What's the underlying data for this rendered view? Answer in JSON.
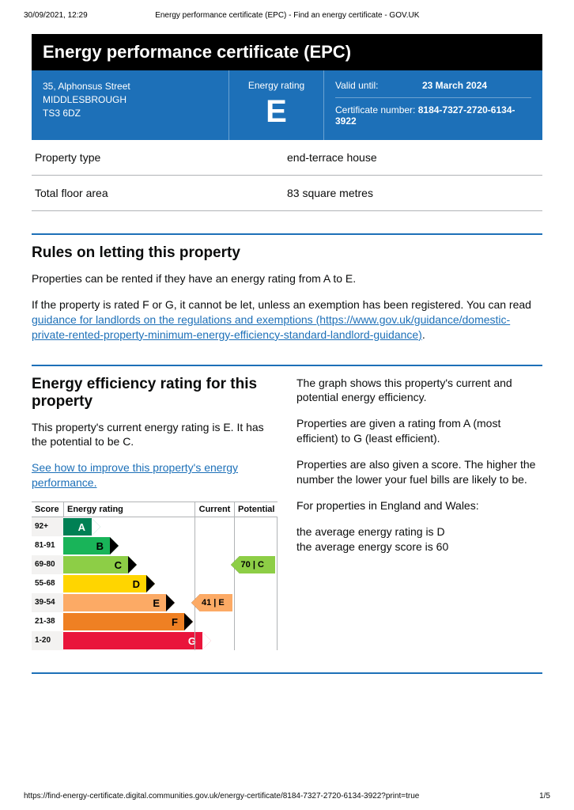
{
  "print": {
    "datetime": "30/09/2021, 12:29",
    "page_title": "Energy performance certificate (EPC) - Find an energy certificate - GOV.UK",
    "url": "https://find-energy-certificate.digital.communities.gov.uk/energy-certificate/8184-7327-2720-6134-3922?print=true",
    "page_num": "1/5"
  },
  "title": "Energy performance certificate (EPC)",
  "header": {
    "address_line1": "35, Alphonsus Street",
    "address_line2": "MIDDLESBROUGH",
    "postcode": "TS3 6DZ",
    "energy_rating_label": "Energy rating",
    "energy_rating": "E",
    "valid_until_label": "Valid until:",
    "valid_until": "23 March 2024",
    "cert_label": "Certificate number:",
    "cert_number": "8184-7327-2720-6134-3922"
  },
  "props": {
    "type_label": "Property type",
    "type_value": "end-terrace house",
    "area_label": "Total floor area",
    "area_value": "83 square metres"
  },
  "rules": {
    "heading": "Rules on letting this property",
    "p1": "Properties can be rented if they have an energy rating from A to E.",
    "p2_pre": "If the property is rated F or G, it cannot be let, unless an exemption has been registered. You can read ",
    "p2_link_text": "guidance for landlords on the regulations and exemptions (https://www.gov.uk/guidance/domestic-private-rented-property-minimum-energy-efficiency-standard-landlord-guidance)",
    "p2_post": "."
  },
  "efficiency": {
    "heading": "Energy efficiency rating for this property",
    "p1": "This property's current energy rating is E. It has the potential to be C.",
    "link": "See how to improve this property's energy performance.",
    "right_p1": "The graph shows this property's current and potential energy efficiency.",
    "right_p2": "Properties are given a rating from A (most efficient) to G (least efficient).",
    "right_p3": "Properties are also given a score. The higher the number the lower your fuel bills are likely to be.",
    "right_p4": "For properties in England and Wales:",
    "right_p5a": "the average energy rating is D",
    "right_p5b": "the average energy score is 60"
  },
  "chart": {
    "headers": {
      "score": "Score",
      "rating": "Energy rating",
      "current": "Current",
      "potential": "Potential"
    },
    "bands": [
      {
        "range": "92+",
        "letter": "A",
        "width": 36,
        "color": "#008054"
      },
      {
        "range": "81-91",
        "letter": "B",
        "width": 59,
        "color": "#19b459"
      },
      {
        "range": "69-80",
        "letter": "C",
        "width": 82,
        "color": "#8dce46"
      },
      {
        "range": "55-68",
        "letter": "D",
        "width": 105,
        "color": "#ffd500"
      },
      {
        "range": "39-54",
        "letter": "E",
        "width": 130,
        "color": "#fcaa65"
      },
      {
        "range": "21-38",
        "letter": "F",
        "width": 153,
        "color": "#ef8023"
      },
      {
        "range": "1-20",
        "letter": "G",
        "width": 176,
        "color": "#e9153b"
      }
    ],
    "current": {
      "score": "41",
      "letter": "E",
      "band_index": 4,
      "color": "#fcaa65"
    },
    "potential": {
      "score": "70",
      "letter": "C",
      "band_index": 2,
      "color": "#8dce46"
    }
  }
}
